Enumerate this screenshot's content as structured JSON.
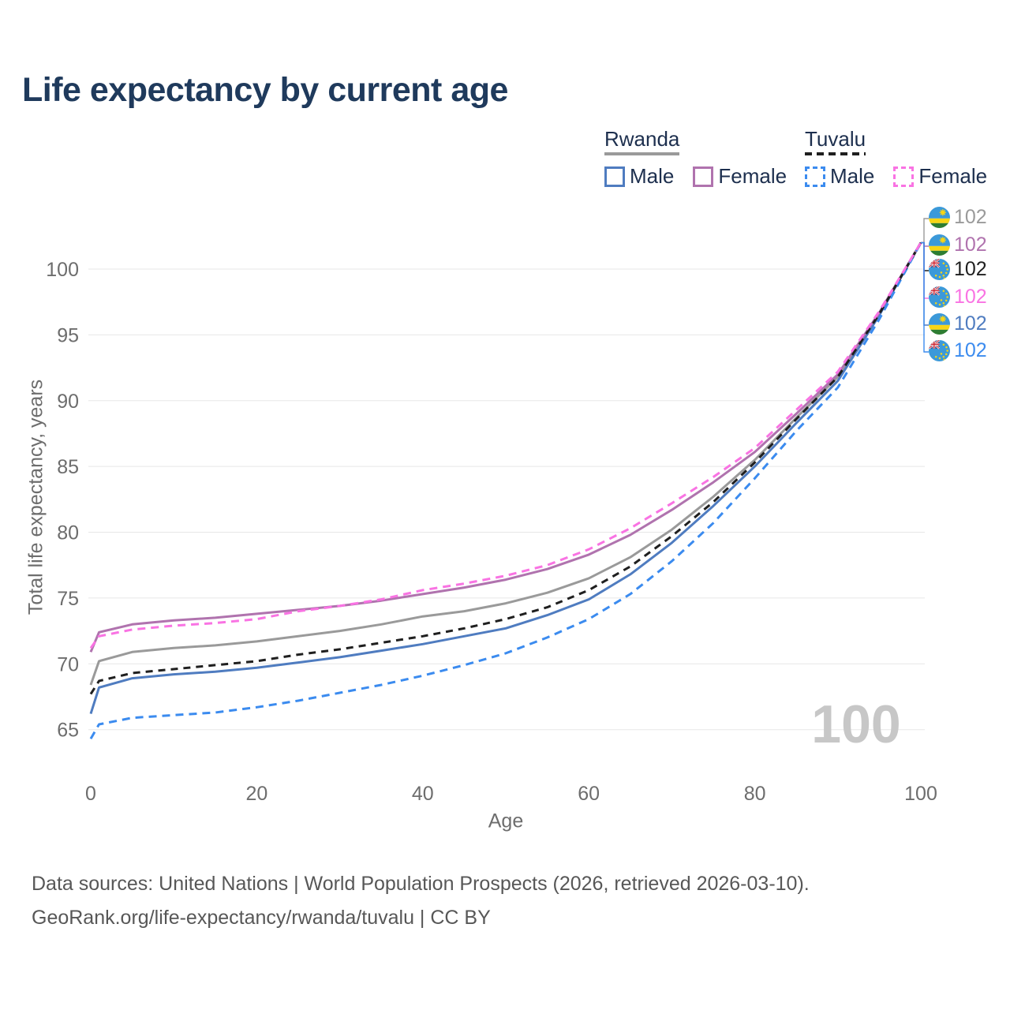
{
  "title": "Life expectancy by current age",
  "legend": {
    "groups": [
      {
        "country": "Rwanda",
        "line_style": "solid",
        "line_color": "#9a9a9a",
        "items": [
          {
            "label": "Male",
            "color": "#4f7cc0",
            "dashed": false
          },
          {
            "label": "Female",
            "color": "#b073ae",
            "dashed": false
          }
        ]
      },
      {
        "country": "Tuvalu",
        "line_style": "dashed",
        "line_color": "#1f1f1f",
        "items": [
          {
            "label": "Male",
            "color": "#3b8bef",
            "dashed": true
          },
          {
            "label": "Female",
            "color": "#f973e3",
            "dashed": true
          }
        ]
      }
    ]
  },
  "y_axis": {
    "title": "Total life expectancy, years",
    "ticks": [
      65,
      70,
      75,
      80,
      85,
      90,
      95,
      100
    ]
  },
  "x_axis": {
    "title": "Age",
    "ticks": [
      0,
      20,
      40,
      60,
      80,
      100
    ]
  },
  "hover_age_indicator": "100",
  "end_labels": [
    {
      "flag": "rwanda",
      "series": "Rwanda Both sexes",
      "value": "102",
      "color": "#9a9a9a"
    },
    {
      "flag": "rwanda",
      "series": "Rwanda Female",
      "value": "102",
      "color": "#b073ae"
    },
    {
      "flag": "tuvalu",
      "series": "Tuvalu Both sexes",
      "value": "102",
      "color": "#1f1f1f"
    },
    {
      "flag": "tuvalu",
      "series": "Tuvalu Female",
      "value": "102",
      "color": "#f973e3"
    },
    {
      "flag": "rwanda",
      "series": "Rwanda Male",
      "value": "102",
      "color": "#4f7cc0"
    },
    {
      "flag": "tuvalu",
      "series": "Tuvalu Male",
      "value": "102",
      "color": "#3b8bef"
    }
  ],
  "footer": {
    "line1": "Data sources: United Nations | World Population Prospects (2026, retrieved 2026-03-10).",
    "line2": "GeoRank.org/life-expectancy/rwanda/tuvalu | CC BY"
  },
  "chart_data": {
    "type": "line",
    "title": "Life expectancy by current age",
    "xlabel": "Age",
    "ylabel": "Total life expectancy, years",
    "xlim": [
      0,
      100
    ],
    "ylim": [
      63,
      103
    ],
    "grid": "horizontal",
    "legend_position": "top-right",
    "x": [
      0,
      1,
      5,
      10,
      15,
      20,
      25,
      30,
      35,
      40,
      45,
      50,
      55,
      60,
      65,
      70,
      75,
      80,
      85,
      90,
      95,
      100
    ],
    "series": [
      {
        "name": "Rwanda Both sexes",
        "country": "Rwanda",
        "sex": "both",
        "color": "#9a9a9a",
        "dash": null,
        "values": [
          68.4,
          70.2,
          70.9,
          71.2,
          71.4,
          71.7,
          72.1,
          72.5,
          73.0,
          73.6,
          74.0,
          74.6,
          75.4,
          76.5,
          78.1,
          80.2,
          82.7,
          85.5,
          88.7,
          91.8,
          96.6,
          102
        ]
      },
      {
        "name": "Rwanda Male",
        "country": "Rwanda",
        "sex": "male",
        "color": "#4f7cc0",
        "dash": null,
        "values": [
          66.2,
          68.2,
          68.9,
          69.2,
          69.4,
          69.7,
          70.1,
          70.5,
          71.0,
          71.5,
          72.1,
          72.7,
          73.7,
          74.9,
          76.8,
          79.2,
          82.0,
          85.0,
          88.3,
          91.5,
          96.5,
          102
        ]
      },
      {
        "name": "Rwanda Female",
        "country": "Rwanda",
        "sex": "female",
        "color": "#b073ae",
        "dash": null,
        "values": [
          70.9,
          72.4,
          73.0,
          73.3,
          73.5,
          73.8,
          74.1,
          74.4,
          74.8,
          75.3,
          75.8,
          76.4,
          77.2,
          78.3,
          79.8,
          81.7,
          83.8,
          86.1,
          89.0,
          92.0,
          96.7,
          102
        ]
      },
      {
        "name": "Tuvalu Male",
        "country": "Tuvalu",
        "sex": "male",
        "color": "#3b8bef",
        "dash": [
          10,
          7
        ],
        "values": [
          64.3,
          65.4,
          65.9,
          66.1,
          66.3,
          66.7,
          67.2,
          67.8,
          68.4,
          69.1,
          69.9,
          70.8,
          72.0,
          73.4,
          75.3,
          77.8,
          80.7,
          84.1,
          87.7,
          91.0,
          96.2,
          102
        ]
      },
      {
        "name": "Tuvalu Both sexes",
        "country": "Tuvalu",
        "sex": "both",
        "color": "#1f1f1f",
        "dash": [
          9,
          7
        ],
        "values": [
          67.7,
          68.7,
          69.3,
          69.6,
          69.9,
          70.2,
          70.7,
          71.1,
          71.6,
          72.1,
          72.7,
          73.4,
          74.3,
          75.6,
          77.4,
          79.7,
          82.3,
          85.3,
          88.6,
          91.8,
          96.6,
          102
        ]
      },
      {
        "name": "Tuvalu Female",
        "country": "Tuvalu",
        "sex": "female",
        "color": "#f973e3",
        "dash": [
          10,
          7
        ],
        "values": [
          71.2,
          72.1,
          72.6,
          72.9,
          73.1,
          73.4,
          74.0,
          74.4,
          74.9,
          75.6,
          76.1,
          76.7,
          77.5,
          78.7,
          80.3,
          82.2,
          84.2,
          86.4,
          89.3,
          92.2,
          96.8,
          102
        ]
      }
    ],
    "end_value_label": "102"
  }
}
